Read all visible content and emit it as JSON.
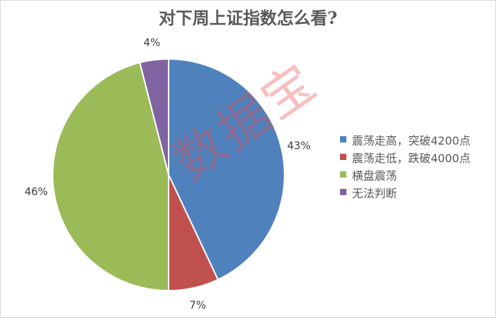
{
  "chart_data": {
    "type": "pie",
    "title": "对下周上证指数怎么看?",
    "categories": [
      "震荡走高，突破4200点",
      "震荡走低，跌破4000点",
      "横盘震荡",
      "无法判断"
    ],
    "values": [
      43,
      7,
      46,
      4
    ],
    "labels": [
      "43%",
      "7%",
      "46%",
      "4%"
    ],
    "colors": [
      "#4F81BD",
      "#C0504D",
      "#9BBB59",
      "#8064A2"
    ],
    "start": "top, clockwise",
    "legend_position": "right"
  },
  "watermark": "数据宝"
}
